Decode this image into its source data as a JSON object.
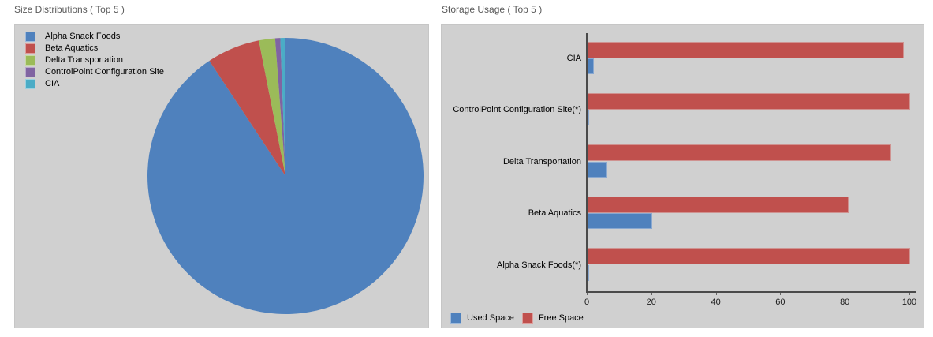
{
  "colors": {
    "panel_bg": "#d0d0d0",
    "panel_border": "#c6c6c6",
    "title_text": "#5a5a5a",
    "axis_line": "#4a4a4a",
    "series_blue": "#4f81bd",
    "series_red": "#c0504d",
    "series_green": "#9bbb59",
    "series_purple": "#8064a2",
    "series_teal": "#4bacc6"
  },
  "chart_data": [
    {
      "type": "pie",
      "title": "Size Distributions ( Top 5 )",
      "labels": [
        "Alpha Snack Foods",
        "Beta Aquatics",
        "Delta Transportation",
        "ControlPoint Configuration Site",
        "CIA"
      ],
      "values": [
        90.7,
        6.2,
        1.9,
        0.6,
        0.6
      ],
      "unit": "percent",
      "colors": [
        "#4f81bd",
        "#c0504d",
        "#9bbb59",
        "#8064a2",
        "#4bacc6"
      ],
      "start_angle": "12-oclock",
      "direction": "clockwise",
      "legend_position": "top-left"
    },
    {
      "type": "bar",
      "orientation": "horizontal",
      "title": "Storage Usage ( Top 5 )",
      "categories": [
        "CIA",
        "ControlPoint Configuration Site(*)",
        "Delta Transportation",
        "Beta Aquatics",
        "Alpha Snack Foods(*)"
      ],
      "series": [
        {
          "name": "Used Space",
          "color": "#4f81bd",
          "values": [
            2,
            0,
            6,
            20,
            0
          ]
        },
        {
          "name": "Free Space",
          "color": "#c0504d",
          "values": [
            98,
            100,
            94,
            81,
            100
          ]
        }
      ],
      "bar_order_top_to_bottom": [
        "Free Space",
        "Used Space"
      ],
      "xlim": [
        0,
        100
      ],
      "xticks": [
        0,
        20,
        40,
        60,
        80,
        100
      ],
      "grid": false,
      "legend_position": "bottom-left"
    }
  ]
}
